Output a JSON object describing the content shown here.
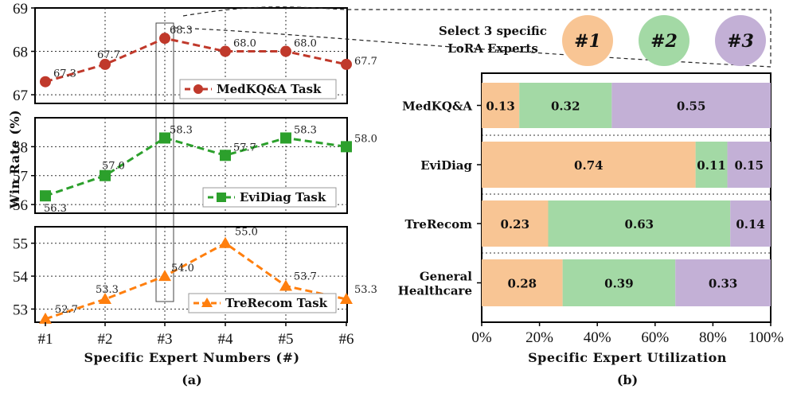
{
  "chart_data": [
    {
      "type": "line",
      "caption": "(a)",
      "xlabel": "Specific Expert Numbers (#)",
      "ylabel": "Win Rate (%)",
      "categories": [
        "#1",
        "#2",
        "#3",
        "#4",
        "#5",
        "#6"
      ],
      "highlight_category": "#3",
      "grid": true,
      "panels": [
        {
          "name": "MedKQ&A Task",
          "color": "#c0392b",
          "marker": "circle",
          "values": [
            67.3,
            67.7,
            68.3,
            68.0,
            68.0,
            67.7
          ],
          "labels": [
            "67.3",
            "67.7",
            "68.3",
            "68.0",
            "68.0",
            "67.7"
          ],
          "ylim": [
            67,
            69
          ],
          "yticks": [
            "67",
            "68",
            "69"
          ]
        },
        {
          "name": "EviDiag Task",
          "color": "#2ca02c",
          "marker": "square",
          "values": [
            56.3,
            57.0,
            58.3,
            57.7,
            58.3,
            58.0
          ],
          "labels": [
            "56.3",
            "57.0",
            "58.3",
            "57.7",
            "58.3",
            "58.0"
          ],
          "ylim": [
            56,
            59
          ],
          "yticks": [
            "56",
            "57",
            "58"
          ]
        },
        {
          "name": "TreRecom Task",
          "color": "#ff7f0e",
          "marker": "triangle",
          "values": [
            52.7,
            53.3,
            54.0,
            55.0,
            53.7,
            53.3
          ],
          "labels": [
            "52.7",
            "53.3",
            "54.0",
            "55.0",
            "53.7",
            "53.3"
          ],
          "ylim": [
            52.7,
            55.5
          ],
          "yticks": [
            "53",
            "54",
            "55"
          ]
        }
      ]
    },
    {
      "type": "bar",
      "orientation": "horizontal",
      "stacked": true,
      "caption": "(b)",
      "xlabel": "Specific Expert Utilization",
      "xticks": [
        "0%",
        "20%",
        "40%",
        "60%",
        "80%",
        "100%"
      ],
      "xlim": [
        0,
        1
      ],
      "header": {
        "text_line1": "Select 3 specific",
        "text_line2": "LoRA Experts"
      },
      "series": [
        {
          "name": "#1",
          "color": "#f8c594"
        },
        {
          "name": "#2",
          "color": "#a3d9a5"
        },
        {
          "name": "#3",
          "color": "#c3b0d6"
        }
      ],
      "categories": [
        {
          "label_lines": [
            "MedKQ&A"
          ],
          "values": [
            0.13,
            0.32,
            0.55
          ],
          "labels": [
            "0.13",
            "0.32",
            "0.55"
          ]
        },
        {
          "label_lines": [
            "EviDiag"
          ],
          "values": [
            0.74,
            0.11,
            0.15
          ],
          "labels": [
            "0.74",
            "0.11",
            "0.15"
          ]
        },
        {
          "label_lines": [
            "TreRecom"
          ],
          "values": [
            0.23,
            0.63,
            0.14
          ],
          "labels": [
            "0.23",
            "0.63",
            "0.14"
          ]
        },
        {
          "label_lines": [
            "General",
            "Healthcare"
          ],
          "values": [
            0.28,
            0.39,
            0.33
          ],
          "labels": [
            "0.28",
            "0.39",
            "0.33"
          ]
        }
      ]
    }
  ]
}
